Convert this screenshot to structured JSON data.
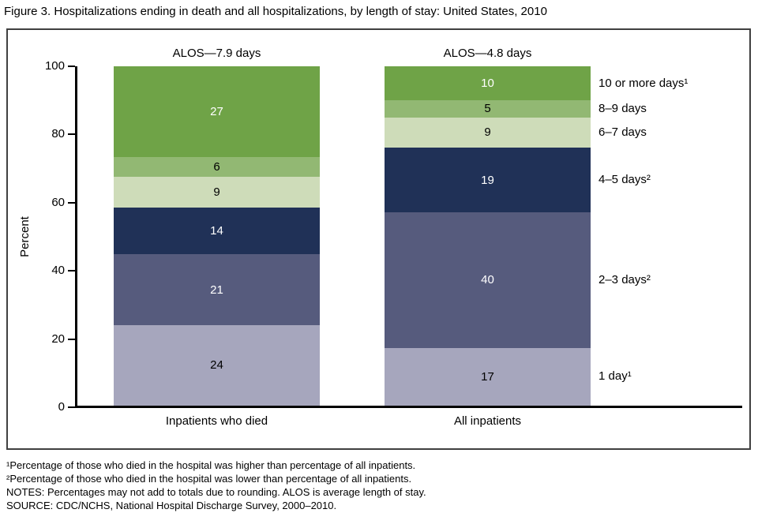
{
  "title": "Figure 3. Hospitalizations ending in death and all hospitalizations, by length of stay: United States, 2010",
  "chart_data": {
    "type": "bar",
    "stacked": true,
    "ylabel": "Percent",
    "ylim": [
      0,
      100
    ],
    "yticks": [
      0,
      20,
      40,
      60,
      80,
      100
    ],
    "grid": "off",
    "legend_position": "right of second bar, each label centered on its segment",
    "categories": [
      "Inpatients who died",
      "All inpatients"
    ],
    "bar_annotations": [
      "ALOS—7.9 days",
      "ALOS—4.8 days"
    ],
    "series": [
      {
        "name": "1 day¹",
        "values": [
          24,
          17
        ],
        "color": "#a6a6bd",
        "label_color": "#000000"
      },
      {
        "name": "2–3 days²",
        "values": [
          21,
          40
        ],
        "color": "#565b7d",
        "label_color": "#ffffff"
      },
      {
        "name": "4–5 days²",
        "values": [
          14,
          19
        ],
        "color": "#203157",
        "label_color": "#ffffff"
      },
      {
        "name": "6–7 days",
        "values": [
          9,
          9
        ],
        "color": "#cedcb9",
        "label_color": "#000000"
      },
      {
        "name": "8–9 days",
        "values": [
          6,
          5
        ],
        "color": "#92b873",
        "label_color": "#000000"
      },
      {
        "name": "10 or more days¹",
        "values": [
          27,
          10
        ],
        "color": "#6fa347",
        "label_color": "#ffffff"
      }
    ]
  },
  "axis_color": "#000000",
  "frame_color": "#404040",
  "footnotes": [
    "¹Percentage of those who died in the hospital was higher than percentage of all inpatients.",
    "²Percentage of those who died in the hospital was lower than percentage of all inpatients.",
    "NOTES: Percentages may not add to totals due to rounding. ALOS is average length of stay.",
    "SOURCE: CDC/NCHS, National Hospital Discharge Survey, 2000–2010."
  ]
}
